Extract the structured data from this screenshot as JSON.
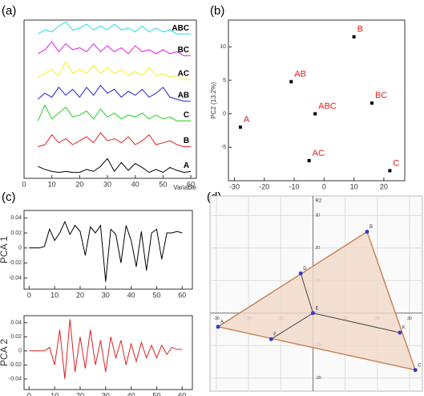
{
  "chart_data": [
    {
      "type": "line",
      "panel_label": "(a)",
      "xlabel": "Variable",
      "x": [
        5,
        7.5,
        10,
        12.5,
        15,
        17.5,
        20,
        22.5,
        25,
        27.5,
        30,
        32.5,
        35,
        37.5,
        40,
        42.5,
        45,
        47.5,
        50,
        52.5,
        55,
        57.5,
        60
      ],
      "xlim": [
        0,
        62
      ],
      "xticks": [
        0,
        10,
        20,
        30,
        40,
        50,
        60
      ],
      "ylim": [
        0,
        8
      ],
      "series_labels": true,
      "series": [
        {
          "name": "A",
          "color": "#000000",
          "values": [
            0.6,
            0.45,
            0.35,
            0.3,
            0.35,
            0.3,
            0.3,
            0.45,
            0.35,
            0.6,
            1.0,
            0.35,
            0.8,
            0.4,
            0.75,
            0.55,
            0.3,
            0.45,
            0.3,
            0.55,
            0.4,
            0.3,
            0.35
          ]
        },
        {
          "name": "B",
          "color": "#e02020",
          "values": [
            1.6,
            1.7,
            2.2,
            1.8,
            2.0,
            1.7,
            1.9,
            2.1,
            1.8,
            2.3,
            1.9,
            2.0,
            1.8,
            2.1,
            1.7,
            1.9,
            2.2,
            1.7,
            1.8,
            1.9,
            1.7,
            1.6,
            1.6
          ]
        },
        {
          "name": "C",
          "color": "#20d020",
          "values": [
            2.9,
            3.7,
            3.0,
            3.3,
            3.6,
            3.1,
            3.2,
            3.4,
            3.0,
            3.5,
            3.1,
            3.3,
            3.0,
            3.2,
            3.1,
            3.3,
            3.0,
            3.2,
            3.0,
            3.1,
            2.9,
            2.9,
            2.9
          ]
        },
        {
          "name": "AB",
          "color": "#2020e0",
          "values": [
            4.0,
            4.3,
            4.1,
            4.6,
            4.2,
            4.5,
            4.1,
            4.6,
            4.2,
            4.7,
            4.3,
            4.5,
            4.1,
            4.4,
            4.2,
            4.5,
            4.1,
            4.3,
            4.6,
            4.1,
            4.0,
            3.9,
            3.9
          ]
        },
        {
          "name": "AC",
          "color": "#f0f020",
          "values": [
            5.1,
            5.3,
            5.5,
            5.2,
            5.9,
            5.3,
            5.5,
            5.3,
            5.7,
            5.3,
            5.6,
            5.3,
            5.5,
            5.2,
            5.4,
            5.2,
            5.6,
            5.2,
            5.3,
            5.1,
            5.2,
            5.0,
            5.0
          ]
        },
        {
          "name": "BC",
          "color": "#e020e0",
          "values": [
            6.3,
            6.5,
            6.9,
            6.4,
            6.8,
            6.5,
            6.6,
            6.4,
            6.8,
            6.4,
            6.7,
            6.4,
            6.6,
            6.3,
            6.7,
            6.4,
            6.5,
            6.3,
            6.5,
            6.3,
            6.4,
            6.2,
            6.2
          ]
        },
        {
          "name": "ABC",
          "color": "#20e0e0",
          "values": [
            7.3,
            7.5,
            7.4,
            7.7,
            7.9,
            7.5,
            7.6,
            7.8,
            7.5,
            7.7,
            7.5,
            7.8,
            7.5,
            7.6,
            7.4,
            7.7,
            7.4,
            7.6,
            7.4,
            7.5,
            7.3,
            7.3,
            7.3
          ]
        }
      ]
    },
    {
      "type": "scatter",
      "panel_label": "(b)",
      "ylabel": "PC2 (13.2%)",
      "x": [
        -28,
        10,
        22,
        -11,
        -5,
        16,
        -3
      ],
      "values": [
        -2,
        11.5,
        -8.5,
        4.8,
        -7,
        1.6,
        0
      ],
      "labels": [
        "A",
        "B",
        "C",
        "AB",
        "AC",
        "BC",
        "ABC"
      ],
      "color": "#000000",
      "label_color": "#e02020",
      "xlim": [
        -32,
        27
      ],
      "xticks": [
        -30,
        -20,
        -10,
        0,
        10,
        20
      ],
      "ylim": [
        -10,
        14
      ],
      "yticks": [
        -5,
        0,
        5,
        10
      ]
    },
    {
      "type": "line",
      "panel_label": "(c)",
      "ylabel": "PCA 1",
      "x": [
        0,
        2,
        4,
        6,
        8,
        10,
        12,
        14,
        16,
        18,
        20,
        22,
        24,
        26,
        28,
        30,
        32,
        34,
        36,
        38,
        40,
        42,
        44,
        46,
        48,
        50,
        52,
        54,
        56,
        58,
        60
      ],
      "xlim": [
        -2,
        64
      ],
      "xticks": [
        0,
        10,
        20,
        30,
        40,
        50,
        60
      ],
      "ylim": [
        -0.055,
        0.05
      ],
      "yticks": [
        -0.04,
        -0.02,
        0,
        0.02,
        0.04
      ],
      "series": [
        {
          "color": "#000000",
          "values": [
            0,
            0,
            0,
            0.002,
            0.025,
            0.01,
            0.02,
            0.035,
            0.018,
            0.03,
            0.022,
            -0.01,
            0.028,
            0.02,
            0.03,
            -0.045,
            0.025,
            0.018,
            -0.02,
            0.03,
            0.01,
            -0.025,
            0.022,
            -0.03,
            0.02,
            0.025,
            -0.015,
            0.02,
            0.02,
            0.022,
            0.02
          ]
        }
      ]
    },
    {
      "type": "line",
      "ylabel": "PCA 2",
      "x": [
        0,
        2,
        4,
        6,
        8,
        10,
        12,
        14,
        16,
        18,
        20,
        22,
        24,
        26,
        28,
        30,
        32,
        34,
        36,
        38,
        40,
        42,
        44,
        46,
        48,
        50,
        52,
        54,
        56,
        58,
        60
      ],
      "xlim": [
        -2,
        64
      ],
      "xticks": [
        0,
        10,
        20,
        30,
        40,
        50,
        60
      ],
      "ylim": [
        -0.055,
        0.05
      ],
      "yticks": [
        -0.04,
        -0.02,
        0,
        0.02,
        0.04
      ],
      "series": [
        {
          "color": "#e02020",
          "values": [
            0,
            0,
            0,
            0,
            0.005,
            -0.02,
            0.03,
            -0.04,
            0.045,
            -0.03,
            0.02,
            -0.025,
            0.03,
            -0.02,
            0.015,
            -0.03,
            0.02,
            -0.01,
            0.015,
            -0.02,
            0.01,
            -0.015,
            0.012,
            -0.01,
            0.008,
            -0.01,
            0.008,
            -0.005,
            0.005,
            0.002,
            0.002
          ]
        }
      ]
    },
    {
      "type": "geometry",
      "panel_label": "(d)",
      "ylabel": "R2",
      "xlim": [
        -32,
        34
      ],
      "xticks": [
        -30,
        -20,
        -10,
        0,
        10,
        20,
        30
      ],
      "ylim": [
        -24,
        36
      ],
      "yticks": [
        -20,
        -10,
        0,
        10,
        20,
        30
      ],
      "fill": "#f3d9c9",
      "edge_color": "#c8855a",
      "point_color": "#3a3ad0",
      "points": [
        {
          "label": "A",
          "x": -29.5,
          "y": -4.2
        },
        {
          "label": "B",
          "x": 16.8,
          "y": 25
        },
        {
          "label": "C",
          "x": 31.8,
          "y": -17.5
        },
        {
          "label": "D",
          "x": -3.8,
          "y": 12.2
        },
        {
          "label": "E",
          "x": 0,
          "y": 0
        },
        {
          "label": "F",
          "x": -13,
          "y": -8
        },
        {
          "label": "K",
          "x": 27,
          "y": -6
        }
      ],
      "polygon": [
        "A",
        "B",
        "C"
      ],
      "edges": [
        [
          "E",
          "D"
        ],
        [
          "E",
          "F"
        ],
        [
          "E",
          "K"
        ]
      ]
    }
  ]
}
